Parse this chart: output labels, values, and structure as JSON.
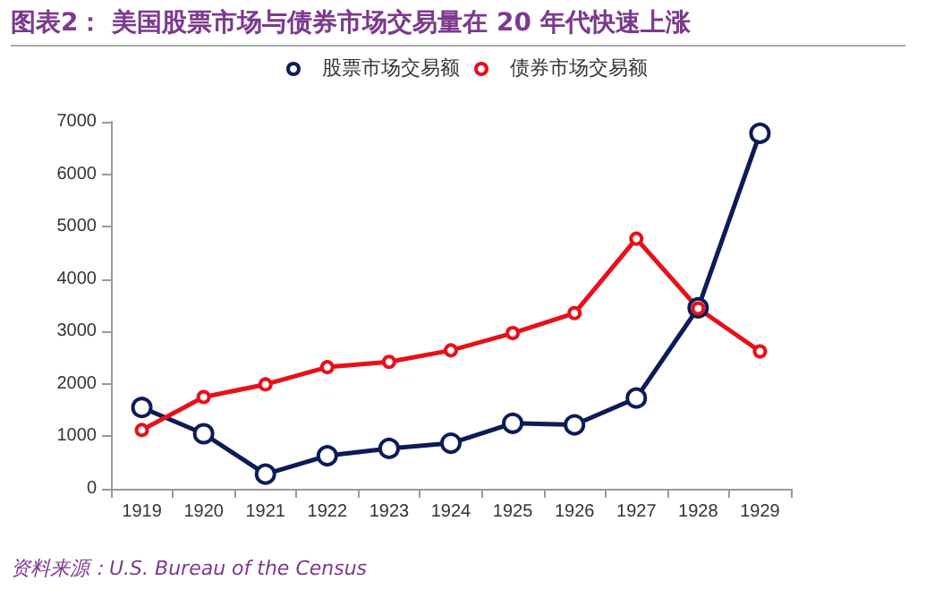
{
  "chart_data": {
    "type": "line",
    "title": "图表2：  美国股票市场与债券市场交易量在 20 年代快速上涨",
    "categories": [
      "1919",
      "1920",
      "1921",
      "1922",
      "1923",
      "1924",
      "1925",
      "1926",
      "1927",
      "1928",
      "1929"
    ],
    "series": [
      {
        "name": "股票市场交易额",
        "color": "#0d1b57",
        "values": [
          1550,
          1050,
          280,
          630,
          770,
          870,
          1250,
          1220,
          1730,
          3450,
          6780
        ]
      },
      {
        "name": "债券市场交易额",
        "color": "#e8101a",
        "values": [
          1120,
          1750,
          1990,
          2320,
          2420,
          2640,
          2970,
          3350,
          4770,
          3440,
          2620
        ]
      }
    ],
    "ylim": [
      0,
      7000
    ],
    "yticks": [
      0,
      1000,
      2000,
      3000,
      4000,
      5000,
      6000,
      7000
    ],
    "grid": false,
    "legend": "top",
    "marker": "circle",
    "line_style": "solid",
    "annotations": [
      "资料来源：U.S. Bureau of the Census"
    ]
  }
}
